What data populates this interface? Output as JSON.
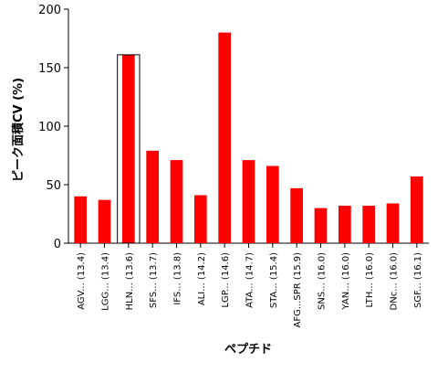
{
  "chart_data": {
    "type": "bar",
    "xlabel": "ペプチド",
    "ylabel": "ピーク面積CV (%)",
    "ylim": [
      0,
      200
    ],
    "yticks": [
      0,
      50,
      100,
      150,
      200
    ],
    "categories": [
      "AGV... (13.4)",
      "LGG... (13.4)",
      "HLN... (13.6)",
      "SFS... (13.7)",
      "IFS... (13.8)",
      "ALI... (14.2)",
      "LGP... (14.6)",
      "ATA... (14.7)",
      "STA... (15.4)",
      "AFG...SPR (15.9)",
      "SNS... (16.0)",
      "YAN... (16.0)",
      "LTH... (16.0)",
      "DNc... (16.0)",
      "SGF... (16.1)"
    ],
    "values": [
      40,
      37,
      161,
      79,
      71,
      41,
      180,
      71,
      66,
      47,
      30,
      32,
      32,
      34,
      57
    ],
    "highlighted_index": 2,
    "bar_color": "#ff0000",
    "grid": false
  }
}
